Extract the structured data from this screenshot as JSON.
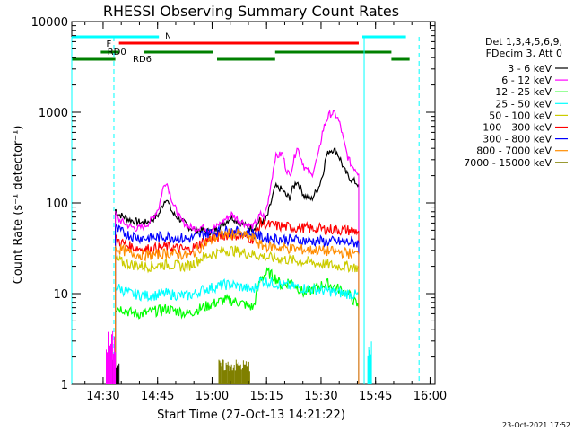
{
  "chart_data": {
    "type": "line",
    "title": "RHESSI Observing Summary Count Rates",
    "xlabel": "Start Time (27-Oct-13 14:21:22)",
    "ylabel": "Count Rate (s⁻¹ detector⁻¹)",
    "yscale": "log",
    "ylim": [
      1,
      10000
    ],
    "xlim_minutes": [
      0,
      100
    ],
    "x_ticks": [
      {
        "label": "14:30",
        "min": 8.63
      },
      {
        "label": "14:45",
        "min": 23.63
      },
      {
        "label": "15:00",
        "min": 38.63
      },
      {
        "label": "15:15",
        "min": 53.63
      },
      {
        "label": "15:30",
        "min": 68.63
      },
      {
        "label": "15:45",
        "min": 83.63
      },
      {
        "label": "16:00",
        "min": 98.63
      }
    ],
    "y_ticks": [
      {
        "label": "1",
        "v": 1
      },
      {
        "label": "10",
        "v": 10
      },
      {
        "label": "100",
        "v": 100
      },
      {
        "label": "1000",
        "v": 1000
      },
      {
        "label": "10000",
        "v": 10000
      }
    ],
    "legend_header": [
      "Det 1,3,4,5,6,9,",
      "FDecim 3, Att 0"
    ],
    "legend_position": "right",
    "series": [
      {
        "name": "3 - 6 keV",
        "color": "#000000",
        "x": [
          12,
          13,
          16,
          18,
          20,
          22,
          24,
          25,
          26,
          27,
          28,
          29,
          30,
          31,
          32,
          34,
          36,
          38,
          40,
          42,
          44,
          46,
          48,
          50,
          52,
          53,
          54,
          56,
          58,
          59,
          60,
          61,
          62,
          64,
          66,
          68,
          69,
          70,
          71,
          72,
          73,
          74,
          75,
          76,
          77,
          78,
          79
        ],
        "y": [
          85,
          75,
          65,
          62,
          60,
          65,
          75,
          95,
          115,
          90,
          75,
          70,
          65,
          60,
          55,
          50,
          50,
          48,
          52,
          60,
          70,
          62,
          55,
          52,
          65,
          60,
          75,
          150,
          140,
          120,
          115,
          150,
          175,
          120,
          110,
          150,
          200,
          320,
          380,
          390,
          360,
          300,
          230,
          200,
          180,
          170,
          160
        ]
      },
      {
        "name": "6 - 12 keV",
        "color": "#ff00ff",
        "x": [
          12,
          13,
          16,
          18,
          20,
          22,
          24,
          25,
          26,
          27,
          28,
          29,
          30,
          31,
          32,
          34,
          36,
          38,
          40,
          42,
          44,
          46,
          48,
          50,
          52,
          53,
          54,
          56,
          58,
          59,
          60,
          61,
          62,
          64,
          66,
          68,
          69,
          70,
          71,
          72,
          73,
          74,
          75,
          76,
          77,
          78,
          79
        ],
        "y": [
          75,
          65,
          55,
          52,
          55,
          65,
          90,
          140,
          175,
          130,
          95,
          80,
          65,
          60,
          55,
          52,
          55,
          50,
          55,
          65,
          75,
          65,
          58,
          55,
          75,
          70,
          100,
          320,
          350,
          240,
          200,
          280,
          420,
          250,
          200,
          350,
          600,
          800,
          950,
          980,
          900,
          700,
          450,
          320,
          260,
          240,
          210
        ]
      },
      {
        "name": "12 - 25 keV",
        "color": "#00ff00",
        "x": [
          12,
          14,
          16,
          18,
          20,
          22,
          24,
          26,
          28,
          30,
          32,
          34,
          36,
          38,
          40,
          42,
          44,
          46,
          48,
          50,
          52,
          54,
          56,
          58,
          60,
          62,
          64,
          66,
          68,
          70,
          72,
          74,
          76,
          78,
          79
        ],
        "y": [
          7,
          6.8,
          6.2,
          6.0,
          6.0,
          6.3,
          6.5,
          6.8,
          6.5,
          6.3,
          6.0,
          6.5,
          7.0,
          7.5,
          8.0,
          8.5,
          8.3,
          8.0,
          7.5,
          7.0,
          15,
          17,
          15,
          12,
          14,
          12,
          10,
          11,
          12,
          13,
          12,
          11,
          10,
          8,
          7
        ]
      },
      {
        "name": "25 - 50 keV",
        "color": "#00ffff",
        "x": [
          12,
          14,
          16,
          18,
          20,
          22,
          24,
          26,
          28,
          30,
          32,
          34,
          36,
          38,
          40,
          42,
          44,
          46,
          48,
          50,
          52,
          54,
          56,
          58,
          60,
          62,
          64,
          66,
          68,
          70,
          72,
          74,
          76,
          78,
          79
        ],
        "y": [
          12,
          11,
          10,
          9.8,
          9.5,
          9.5,
          9.7,
          10,
          9.8,
          9.5,
          9.5,
          10,
          11,
          11.5,
          12,
          12.5,
          12.5,
          12,
          11.5,
          11,
          14,
          13.5,
          13,
          12.5,
          12,
          11.8,
          11.5,
          11.2,
          11,
          10.8,
          10.5,
          10.2,
          10,
          9.7,
          9.5
        ]
      },
      {
        "name": "50 - 100 keV",
        "color": "#cccc00",
        "x": [
          12,
          14,
          16,
          18,
          20,
          22,
          24,
          26,
          28,
          30,
          32,
          34,
          36,
          38,
          40,
          42,
          44,
          46,
          48,
          50,
          52,
          54,
          56,
          58,
          60,
          62,
          64,
          66,
          68,
          70,
          72,
          74,
          76,
          78,
          79
        ],
        "y": [
          24,
          22,
          21,
          20.5,
          20,
          20,
          20.5,
          21,
          20.5,
          20,
          20,
          22,
          25,
          27,
          28,
          30,
          30,
          29,
          28,
          27,
          26,
          25,
          24.5,
          24,
          23.5,
          23,
          22.5,
          22,
          21.5,
          21,
          20.5,
          20,
          20,
          19.5,
          19
        ]
      },
      {
        "name": "100 - 300 keV",
        "color": "#ff0000",
        "x": [
          12,
          14,
          16,
          18,
          20,
          22,
          24,
          26,
          28,
          30,
          32,
          34,
          36,
          38,
          40,
          42,
          44,
          46,
          48,
          50,
          52,
          54,
          56,
          58,
          60,
          62,
          64,
          66,
          68,
          70,
          72,
          74,
          76,
          78,
          79
        ],
        "y": [
          40,
          36,
          33,
          32,
          31,
          31,
          32,
          33,
          32,
          31,
          30,
          33,
          37,
          40,
          42,
          44,
          45,
          44,
          42,
          40,
          60,
          57,
          56,
          55,
          54,
          53,
          53,
          52,
          52,
          51,
          51,
          50,
          50,
          49,
          49
        ]
      },
      {
        "name": "300 - 800 keV",
        "color": "#0000ff",
        "x": [
          12,
          14,
          16,
          18,
          20,
          22,
          24,
          26,
          28,
          30,
          32,
          34,
          36,
          38,
          40,
          42,
          44,
          46,
          48,
          50,
          52,
          54,
          56,
          58,
          60,
          62,
          64,
          66,
          68,
          70,
          72,
          74,
          76,
          78,
          79
        ],
        "y": [
          52,
          47,
          44,
          42,
          41,
          41,
          42,
          43,
          42,
          41,
          40,
          42,
          45,
          47,
          48,
          49,
          49,
          48,
          47,
          46,
          42,
          41,
          40.5,
          40,
          39.5,
          39,
          38.5,
          38,
          38,
          37.5,
          37.5,
          37,
          37,
          36.5,
          36
        ]
      },
      {
        "name": "800 - 7000 keV",
        "color": "#ff8c00",
        "x": [
          12,
          14,
          16,
          18,
          20,
          22,
          24,
          26,
          28,
          30,
          32,
          34,
          36,
          38,
          40,
          42,
          44,
          46,
          48,
          50,
          52,
          54,
          56,
          58,
          60,
          62,
          64,
          66,
          68,
          70,
          72,
          74,
          76,
          78,
          79
        ],
        "y": [
          32,
          30,
          28,
          27,
          26.5,
          26.5,
          27,
          28,
          27.5,
          27,
          26,
          29,
          34,
          38,
          42,
          45,
          46,
          45,
          43,
          41,
          34,
          33,
          32.5,
          32,
          31.5,
          31,
          30.5,
          30,
          30,
          29.5,
          29,
          28.5,
          28,
          27.5,
          27
        ]
      },
      {
        "name": "7000 - 15000 keV",
        "color": "#808000",
        "x": [],
        "y": []
      }
    ],
    "annotations": [
      "N",
      "F",
      "RD0",
      "RD6"
    ]
  },
  "footer_date": "23-Oct-2021 17:52"
}
